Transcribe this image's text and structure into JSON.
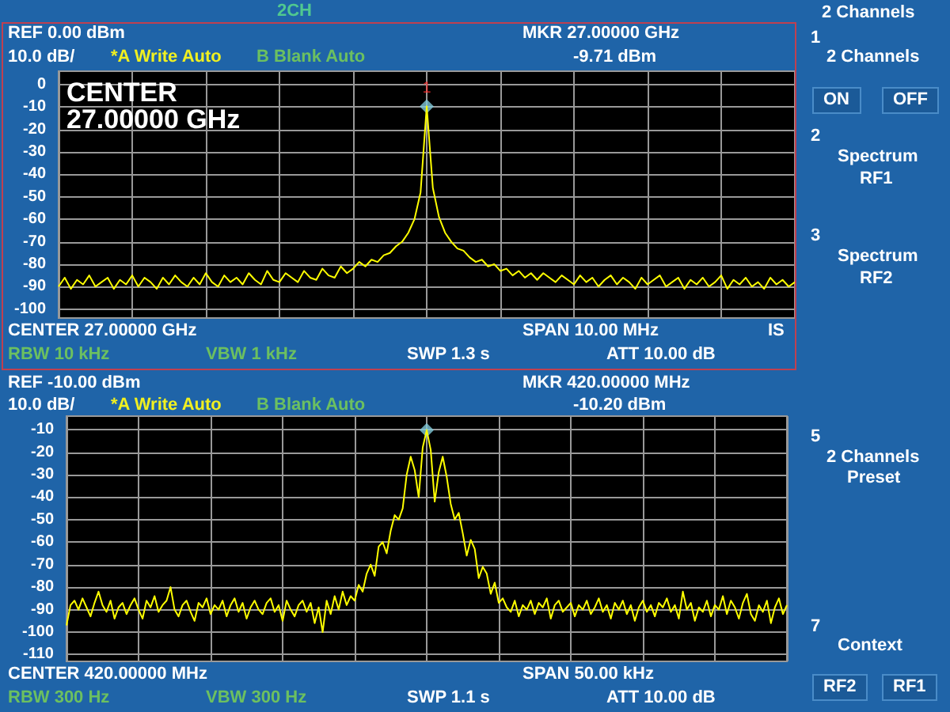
{
  "chart_data": [
    {
      "type": "line",
      "title": "2CH",
      "grid": true,
      "tick_labels": "y",
      "ylim": [
        -104,
        6
      ],
      "yticks": [
        0,
        -10,
        -20,
        -30,
        -40,
        -50,
        -60,
        -70,
        -80,
        -90,
        -100
      ],
      "annotations": [
        "REF 0.00 dBm",
        "10.0 dB/",
        "*A Write Auto",
        "B Blank Auto",
        "MKR 27.00000 GHz",
        "-9.71 dBm",
        "CENTER 27.00000 GHz",
        "RBW 10 kHz",
        "VBW 1 kHz",
        "SWP 1.3 s",
        "SPAN 10.00 MHz",
        "ATT 10.00 dB",
        "IS",
        "CENTER",
        "27.00000 GHz"
      ],
      "categories": [
        null,
        null,
        null,
        null,
        null,
        null,
        null,
        null,
        null,
        null,
        null,
        null,
        null,
        null,
        null,
        null,
        null,
        null,
        null,
        null,
        null,
        null,
        null,
        null,
        null,
        null,
        null,
        null,
        null,
        null,
        null,
        null,
        null,
        null,
        null,
        null,
        null,
        null,
        null,
        null,
        null,
        null,
        null,
        null,
        null,
        null,
        null,
        null,
        null,
        null,
        null,
        null,
        null,
        null,
        null,
        null,
        null,
        null,
        null,
        null,
        null,
        null,
        null,
        null,
        null,
        null,
        null,
        null,
        null,
        null,
        null,
        null,
        null,
        null,
        null,
        null,
        null,
        null,
        null,
        null,
        null,
        null,
        null,
        null,
        null,
        null,
        null,
        null,
        null,
        null,
        null,
        null,
        null,
        null,
        null,
        null,
        null,
        null,
        null,
        null,
        null,
        null,
        null,
        null,
        null,
        null,
        null,
        null,
        null,
        null,
        null,
        null,
        null,
        null,
        null,
        null,
        null,
        null,
        null,
        null,
        null
      ],
      "series": [
        {
          "color": "#ffff00",
          "values": [
            -90,
            -86,
            -91,
            -87,
            -89,
            -85,
            -90,
            -88,
            -86,
            -91,
            -87,
            -89,
            -85,
            -90,
            -86,
            -88,
            -91,
            -86,
            -89,
            -85,
            -88,
            -90,
            -86,
            -89,
            -84,
            -88,
            -90,
            -85,
            -88,
            -86,
            -89,
            -84,
            -87,
            -89,
            -83,
            -87,
            -88,
            -84,
            -86,
            -88,
            -83,
            -86,
            -87,
            -82,
            -85,
            -86,
            -81,
            -84,
            -82,
            -79,
            -81,
            -78,
            -79,
            -76,
            -75,
            -72,
            -70,
            -66,
            -60,
            -48,
            -9.71,
            -46,
            -59,
            -66,
            -70,
            -73,
            -74,
            -77,
            -79,
            -78,
            -81,
            -80,
            -83,
            -82,
            -85,
            -83,
            -86,
            -84,
            -87,
            -84,
            -86,
            -88,
            -85,
            -87,
            -89,
            -85,
            -88,
            -86,
            -90,
            -87,
            -85,
            -89,
            -86,
            -88,
            -91,
            -86,
            -89,
            -87,
            -85,
            -90,
            -88,
            -86,
            -91,
            -87,
            -89,
            -86,
            -90,
            -88,
            -85,
            -91,
            -87,
            -89,
            -86,
            -90,
            -88,
            -91,
            -86,
            -89,
            -87,
            -90,
            -88
          ]
        },
        {
          "type": "scatter",
          "name": "1",
          "marker": "diamond",
          "color": "#80c8d8",
          "values": [
            null,
            null,
            null,
            null,
            null,
            null,
            null,
            null,
            null,
            null,
            null,
            null,
            null,
            null,
            null,
            null,
            null,
            null,
            null,
            null,
            null,
            null,
            null,
            null,
            null,
            null,
            null,
            null,
            null,
            null,
            null,
            null,
            null,
            null,
            null,
            null,
            null,
            null,
            null,
            null,
            null,
            null,
            null,
            null,
            null,
            null,
            null,
            null,
            null,
            null,
            null,
            null,
            null,
            null,
            null,
            null,
            null,
            null,
            null,
            null,
            -9.71,
            null,
            null,
            null,
            null,
            null,
            null,
            null,
            null,
            null,
            null,
            null,
            null,
            null,
            null,
            null,
            null,
            null,
            null,
            null,
            null,
            null,
            null,
            null,
            null,
            null,
            null,
            null,
            null,
            null,
            null,
            null,
            null,
            null,
            null,
            null,
            null,
            null,
            null,
            null,
            null,
            null,
            null,
            null,
            null,
            null,
            null,
            null,
            null,
            null,
            null,
            null,
            null,
            null,
            null,
            null,
            null,
            null,
            null,
            null,
            null
          ]
        }
      ]
    },
    {
      "type": "line",
      "grid": true,
      "tick_labels": "y",
      "ylim": [
        -113,
        -4
      ],
      "yticks": [
        -10,
        -20,
        -30,
        -40,
        -50,
        -60,
        -70,
        -80,
        -90,
        -100,
        -110
      ],
      "annotations": [
        "REF -10.00 dBm",
        "10.0 dB/",
        "*A Write Auto",
        "B Blank Auto",
        "MKR 420.00000 MHz",
        "-10.20 dBm",
        "CENTER 420.00000 MHz",
        "RBW 300 Hz",
        "VBW 300 Hz",
        "SWP 1.1 s",
        "SPAN 50.00 kHz",
        "ATT 10.00 dB"
      ],
      "categories": [
        null,
        null,
        null,
        null,
        null,
        null,
        null,
        null,
        null,
        null,
        null,
        null,
        null,
        null,
        null,
        null,
        null,
        null,
        null,
        null,
        null,
        null,
        null,
        null,
        null,
        null,
        null,
        null,
        null,
        null,
        null,
        null,
        null,
        null,
        null,
        null,
        null,
        null,
        null,
        null,
        null,
        null,
        null,
        null,
        null,
        null,
        null,
        null,
        null,
        null,
        null,
        null,
        null,
        null,
        null,
        null,
        null,
        null,
        null,
        null,
        null,
        null,
        null,
        null,
        null,
        null,
        null,
        null,
        null,
        null,
        null,
        null,
        null,
        null,
        null,
        null,
        null,
        null,
        null,
        null,
        null,
        null,
        null,
        null,
        null,
        null,
        null,
        null,
        null,
        null,
        null,
        null,
        null,
        null,
        null,
        null,
        null,
        null,
        null,
        null,
        null,
        null,
        null,
        null,
        null,
        null,
        null,
        null,
        null,
        null,
        null,
        null,
        null,
        null,
        null,
        null,
        null,
        null,
        null,
        null,
        null,
        null,
        null,
        null,
        null,
        null,
        null,
        null,
        null,
        null,
        null,
        null,
        null,
        null,
        null,
        null,
        null,
        null,
        null,
        null,
        null,
        null,
        null,
        null,
        null,
        null,
        null,
        null,
        null,
        null,
        null,
        null,
        null,
        null,
        null,
        null,
        null,
        null,
        null,
        null,
        null,
        null,
        null,
        null,
        null,
        null,
        null,
        null,
        null,
        null,
        null,
        null,
        null,
        null,
        null,
        null,
        null,
        null,
        null,
        null,
        null
      ],
      "series": [
        {
          "color": "#ffff00",
          "values": [
            -97,
            -88,
            -86,
            -90,
            -85,
            -89,
            -93,
            -87,
            -82,
            -88,
            -91,
            -86,
            -94,
            -89,
            -87,
            -92,
            -88,
            -85,
            -90,
            -94,
            -86,
            -89,
            -84,
            -91,
            -88,
            -86,
            -80,
            -90,
            -93,
            -88,
            -86,
            -91,
            -95,
            -87,
            -89,
            -85,
            -92,
            -88,
            -90,
            -86,
            -93,
            -88,
            -85,
            -91,
            -87,
            -94,
            -89,
            -86,
            -90,
            -92,
            -87,
            -85,
            -91,
            -88,
            -95,
            -86,
            -90,
            -93,
            -88,
            -86,
            -91,
            -87,
            -96,
            -89,
            -100,
            -86,
            -92,
            -84,
            -90,
            -82,
            -88,
            -84,
            -86,
            -79,
            -82,
            -74,
            -70,
            -75,
            -62,
            -60,
            -65,
            -55,
            -48,
            -50,
            -45,
            -30,
            -22,
            -28,
            -40,
            -18,
            -10.2,
            -19,
            -42,
            -29,
            -22,
            -31,
            -43,
            -50,
            -47,
            -56,
            -66,
            -59,
            -63,
            -76,
            -71,
            -74,
            -83,
            -78,
            -87,
            -85,
            -89,
            -91,
            -86,
            -93,
            -88,
            -90,
            -86,
            -92,
            -87,
            -89,
            -85,
            -94,
            -88,
            -86,
            -91,
            -89,
            -87,
            -93,
            -88,
            -90,
            -86,
            -92,
            -89,
            -85,
            -91,
            -88,
            -94,
            -87,
            -90,
            -86,
            -92,
            -88,
            -95,
            -89,
            -86,
            -91,
            -88,
            -93,
            -87,
            -89,
            -85,
            -91,
            -88,
            -94,
            -82,
            -90,
            -87,
            -95,
            -89,
            -91,
            -86,
            -93,
            -88,
            -90,
            -84,
            -92,
            -86,
            -89,
            -94,
            -87,
            -83,
            -92,
            -95,
            -88,
            -91,
            -86,
            -96,
            -89,
            -85,
            -92,
            -88
          ]
        },
        {
          "type": "scatter",
          "marker": "diamond",
          "color": "#80c8d8",
          "values": [
            null,
            null,
            null,
            null,
            null,
            null,
            null,
            null,
            null,
            null,
            null,
            null,
            null,
            null,
            null,
            null,
            null,
            null,
            null,
            null,
            null,
            null,
            null,
            null,
            null,
            null,
            null,
            null,
            null,
            null,
            null,
            null,
            null,
            null,
            null,
            null,
            null,
            null,
            null,
            null,
            null,
            null,
            null,
            null,
            null,
            null,
            null,
            null,
            null,
            null,
            null,
            null,
            null,
            null,
            null,
            null,
            null,
            null,
            null,
            null,
            null,
            null,
            null,
            null,
            null,
            null,
            null,
            null,
            null,
            null,
            null,
            null,
            null,
            null,
            null,
            null,
            null,
            null,
            null,
            null,
            null,
            null,
            null,
            null,
            null,
            null,
            null,
            null,
            null,
            null,
            -10.2,
            null,
            null,
            null,
            null,
            null,
            null,
            null,
            null,
            null,
            null,
            null,
            null,
            null,
            null,
            null,
            null,
            null,
            null,
            null,
            null,
            null,
            null,
            null,
            null,
            null,
            null,
            null,
            null,
            null,
            null,
            null,
            null,
            null,
            null,
            null,
            null,
            null,
            null,
            null,
            null,
            null,
            null,
            null,
            null,
            null,
            null,
            null,
            null,
            null,
            null,
            null,
            null,
            null,
            null,
            null,
            null,
            null,
            null,
            null,
            null,
            null,
            null,
            null,
            null,
            null,
            null,
            null,
            null,
            null,
            null,
            null,
            null,
            null,
            null,
            null,
            null,
            null,
            null,
            null,
            null,
            null,
            null,
            null,
            null,
            null,
            null,
            null,
            null,
            null,
            null
          ]
        }
      ]
    },
    {
      "type": "other",
      "title": "2 Channels",
      "annotations": [
        "1",
        "2 Channels",
        "ON",
        "OFF",
        "2",
        "Spectrum",
        "RF1",
        "3",
        "Spectrum",
        "RF2",
        "5",
        "2 Channels",
        "Preset",
        "7",
        "Context",
        "RF2",
        "RF1"
      ]
    }
  ]
}
